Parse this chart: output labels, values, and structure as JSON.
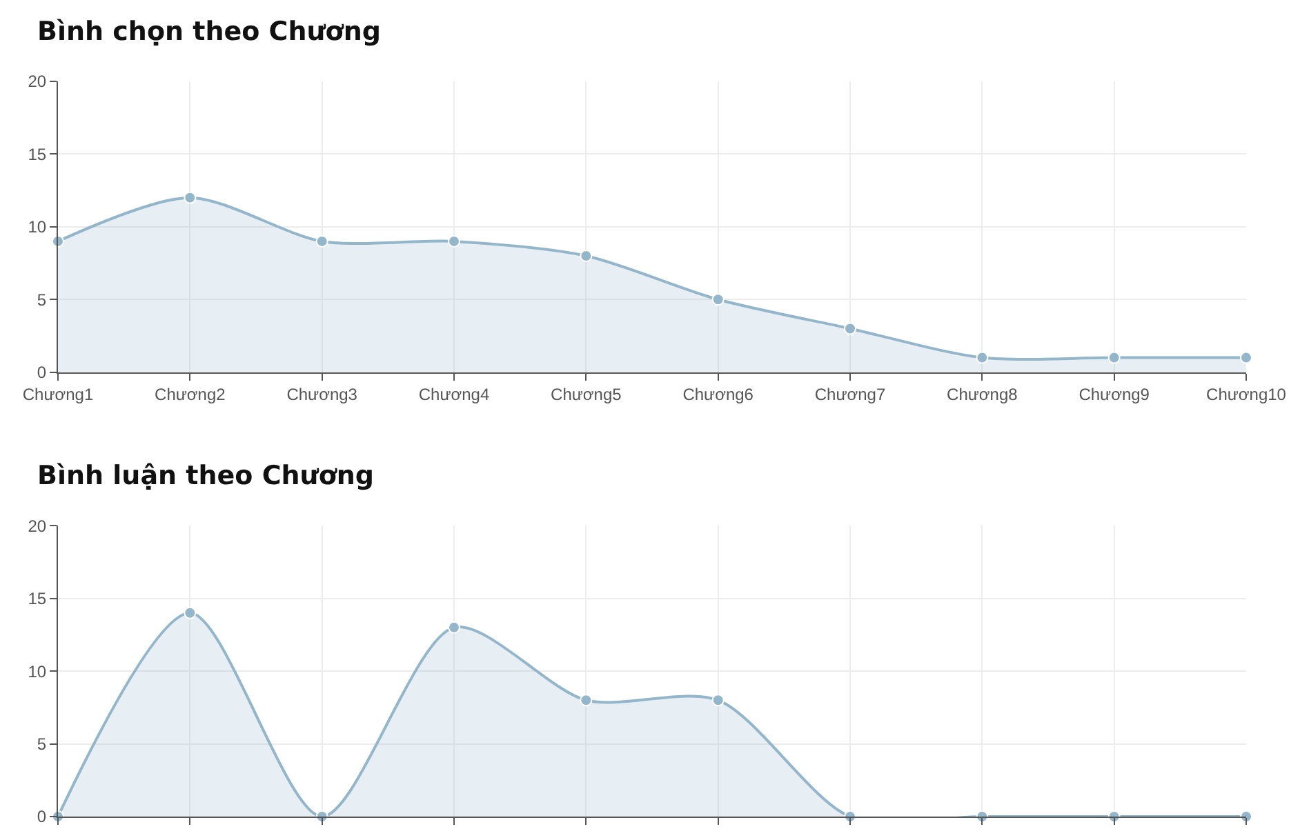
{
  "chart_data": [
    {
      "type": "area",
      "title": "Bình chọn theo Chương",
      "categories": [
        "Chương1",
        "Chương2",
        "Chương3",
        "Chương4",
        "Chương5",
        "Chương6",
        "Chương7",
        "Chương8",
        "Chương9",
        "Chương10"
      ],
      "series": [
        {
          "color": "#94b6cb",
          "values": [
            9,
            12,
            9,
            9,
            8,
            5,
            3,
            1,
            1,
            1
          ]
        }
      ],
      "ylim": [
        0,
        20
      ],
      "yticks": [
        0,
        5,
        10,
        15,
        20
      ],
      "grid": true,
      "marker": "circle",
      "line_style": "solid"
    },
    {
      "type": "area",
      "title": "Bình luận theo Chương",
      "categories": [
        null,
        null,
        null,
        null,
        null,
        null,
        null,
        null,
        null,
        null
      ],
      "series": [
        {
          "color": "#94b6cb",
          "values": [
            0,
            14,
            0,
            13,
            8,
            8,
            0,
            0,
            0,
            0
          ]
        }
      ],
      "ylim": [
        0,
        20
      ],
      "yticks": [
        0,
        5,
        10,
        15,
        20
      ],
      "grid": true,
      "marker": "circle",
      "line_style": "solid"
    }
  ]
}
